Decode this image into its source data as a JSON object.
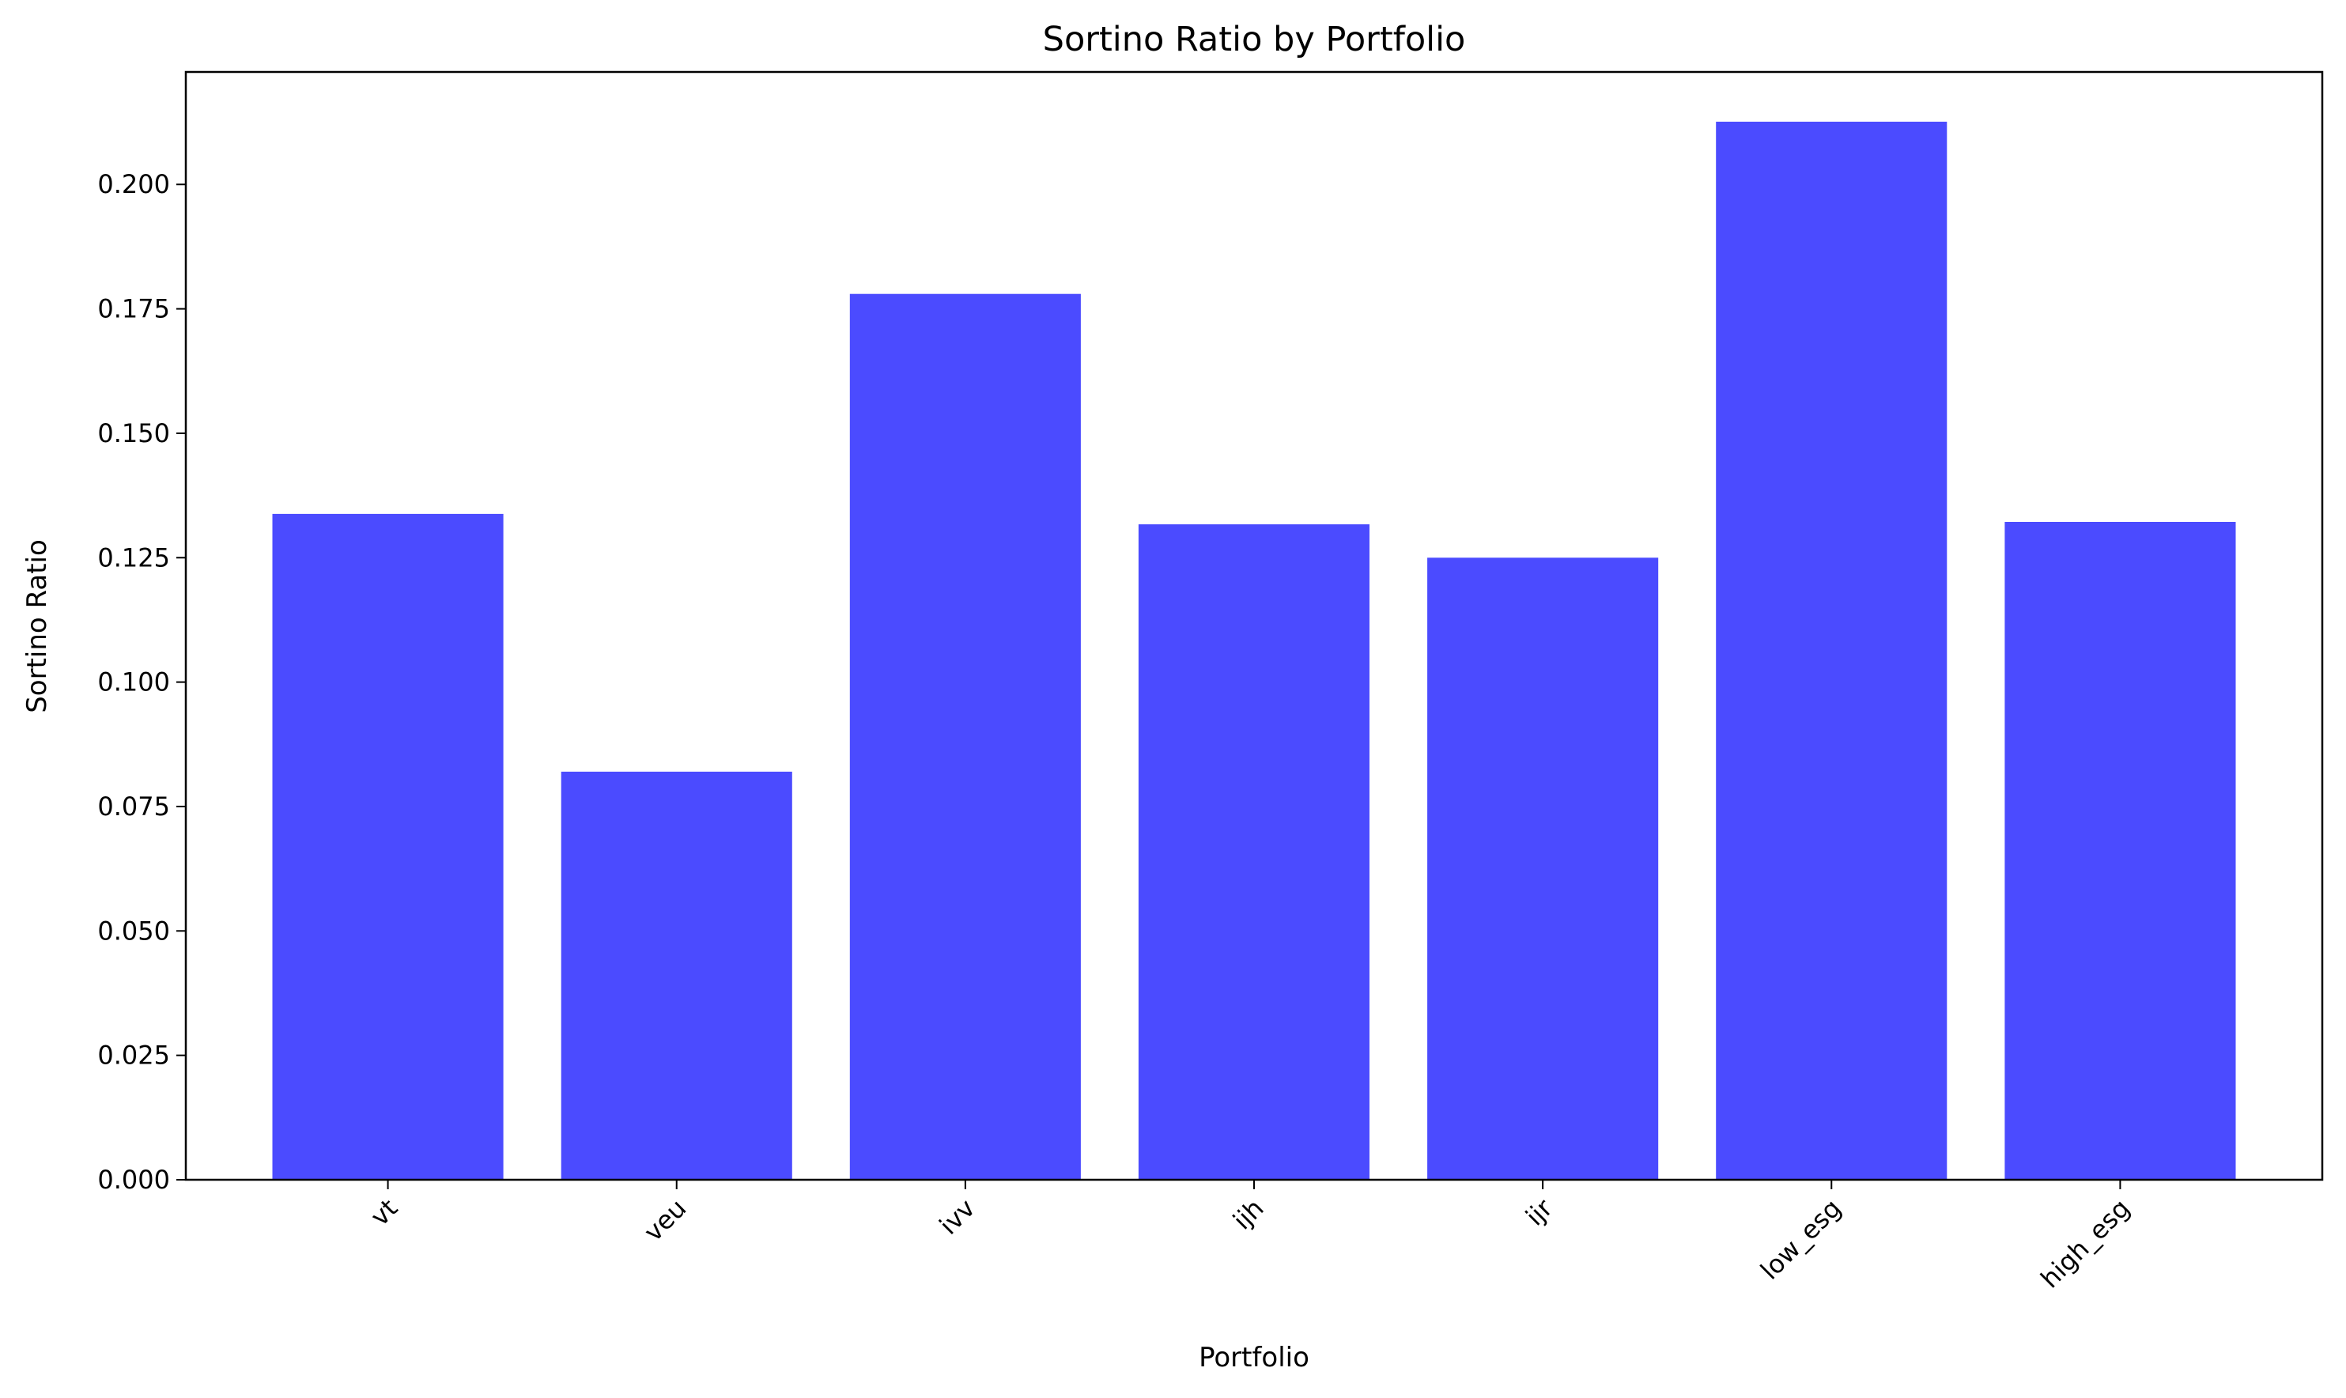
{
  "chart_data": {
    "type": "bar",
    "title": "Sortino Ratio by Portfolio",
    "xlabel": "Portfolio",
    "ylabel": "Sortino Ratio",
    "categories": [
      "vt",
      "veu",
      "ivv",
      "ijh",
      "ijr",
      "low_esg",
      "high_esg"
    ],
    "values": [
      0.1338,
      0.082,
      0.178,
      0.1317,
      0.125,
      0.2126,
      0.1322
    ],
    "ylim": [
      0,
      0.2226
    ],
    "yticks": [
      "0.000",
      "0.025",
      "0.050",
      "0.075",
      "0.100",
      "0.125",
      "0.150",
      "0.175",
      "0.200"
    ],
    "bar_color": "#4b4bff",
    "x_tick_rotation_deg": 45,
    "grid": false,
    "legend": "none"
  }
}
